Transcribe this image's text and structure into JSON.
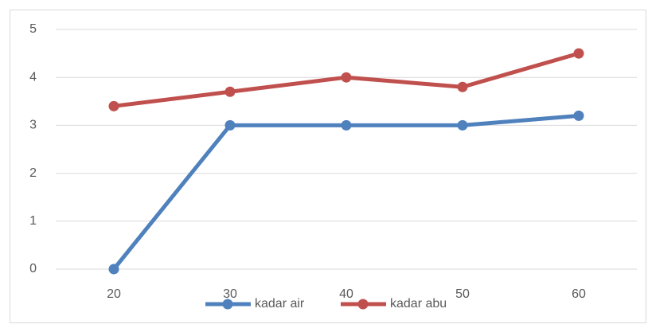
{
  "chart_data": {
    "type": "line",
    "categories": [
      "20",
      "30",
      "40",
      "50",
      "60"
    ],
    "series": [
      {
        "name": "kadar air",
        "color": "#4f81bd",
        "values": [
          0,
          3,
          3,
          3,
          3.2
        ]
      },
      {
        "name": "kadar abu",
        "color": "#c0504d",
        "values": [
          3.4,
          3.7,
          4,
          3.8,
          4.5
        ]
      }
    ],
    "ylim": [
      0,
      5
    ],
    "yticks": [
      0,
      1,
      2,
      3,
      4,
      5
    ],
    "grid": true,
    "legend": "bottom"
  }
}
